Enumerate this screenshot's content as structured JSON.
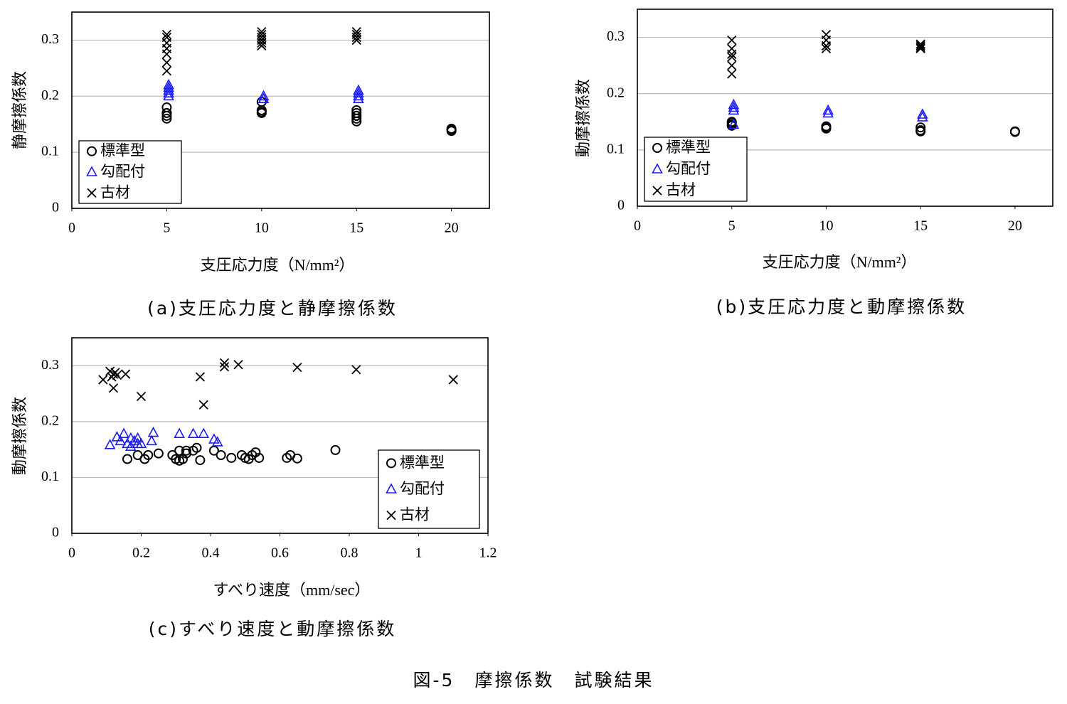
{
  "chart_data": [
    {
      "type": "scatter",
      "caption": "(a)支圧応力度と静摩擦係数",
      "xlabel": "支圧応力度（N/mm²）",
      "ylabel": "静摩擦係数",
      "xlim": [
        0,
        22
      ],
      "xticks": [
        0,
        5,
        10,
        15,
        20
      ],
      "ylim": [
        0,
        0.35
      ],
      "yticks": [
        0,
        0.1,
        0.2,
        0.3
      ],
      "grid": true,
      "legend": "lower left",
      "series": [
        {
          "name": "標準型",
          "color": "#000000",
          "marker": "circle",
          "x": [
            5,
            5,
            5,
            5,
            5,
            10,
            10,
            10,
            10,
            15,
            15,
            15,
            15,
            15,
            15,
            20,
            20,
            20
          ],
          "values": [
            0.18,
            0.17,
            0.16,
            0.17,
            0.165,
            0.19,
            0.175,
            0.17,
            0.172,
            0.175,
            0.17,
            0.165,
            0.16,
            0.155,
            0.165,
            0.14,
            0.142,
            0.138
          ]
        },
        {
          "name": "勾配付",
          "color": "#1a1aff",
          "marker": "triangle",
          "x": [
            5.1,
            5.1,
            5.1,
            5.1,
            5.1,
            10.1,
            10.1,
            15.1,
            15.1,
            15.1,
            15.1
          ],
          "values": [
            0.22,
            0.215,
            0.21,
            0.205,
            0.2,
            0.2,
            0.195,
            0.21,
            0.205,
            0.2,
            0.195
          ]
        },
        {
          "name": "古材",
          "color": "#000000",
          "marker": "cross",
          "x": [
            5,
            5,
            5,
            5,
            5,
            5,
            5,
            10,
            10,
            10,
            10,
            10,
            10,
            15,
            15,
            15,
            15
          ],
          "values": [
            0.31,
            0.305,
            0.295,
            0.285,
            0.275,
            0.26,
            0.245,
            0.315,
            0.31,
            0.305,
            0.3,
            0.295,
            0.29,
            0.315,
            0.31,
            0.305,
            0.3
          ]
        }
      ]
    },
    {
      "type": "scatter",
      "caption": "(b)支圧応力度と動摩擦係数",
      "xlabel": "支圧応力度（N/mm²）",
      "ylabel": "動摩擦係数",
      "xlim": [
        0,
        22
      ],
      "xticks": [
        0,
        5,
        10,
        15,
        20
      ],
      "ylim": [
        0,
        0.35
      ],
      "yticks": [
        0,
        0.1,
        0.2,
        0.3
      ],
      "grid": true,
      "legend": "lower left",
      "series": [
        {
          "name": "標準型",
          "color": "#000000",
          "marker": "circle",
          "x": [
            5,
            5,
            5,
            5,
            10,
            10,
            10,
            15,
            15,
            15,
            20,
            20
          ],
          "values": [
            0.15,
            0.148,
            0.145,
            0.143,
            0.142,
            0.14,
            0.138,
            0.14,
            0.135,
            0.133,
            0.133,
            0.132
          ]
        },
        {
          "name": "勾配付",
          "color": "#1a1aff",
          "marker": "triangle",
          "x": [
            5.1,
            5.1,
            5.1,
            5.1,
            10.1,
            10.1,
            15.1,
            15.1
          ],
          "values": [
            0.18,
            0.175,
            0.17,
            0.145,
            0.17,
            0.165,
            0.163,
            0.158
          ]
        },
        {
          "name": "古材",
          "color": "#000000",
          "marker": "cross",
          "x": [
            5,
            5,
            5,
            5,
            5,
            5,
            10,
            10,
            10,
            10,
            15,
            15,
            15,
            15
          ],
          "values": [
            0.295,
            0.28,
            0.27,
            0.265,
            0.25,
            0.235,
            0.305,
            0.295,
            0.285,
            0.28,
            0.288,
            0.285,
            0.282,
            0.28
          ]
        }
      ]
    },
    {
      "type": "scatter",
      "caption": "(c)すべり速度と動摩擦係数",
      "xlabel": "すべり速度（mm/sec）",
      "ylabel": "動摩擦係数",
      "xlim": [
        0,
        1.2
      ],
      "xticks": [
        0,
        0.2,
        0.4,
        0.6,
        0.8,
        1,
        1.2
      ],
      "ylim": [
        0,
        0.35
      ],
      "yticks": [
        0,
        0.1,
        0.2,
        0.3
      ],
      "grid": true,
      "legend": "lower right",
      "series": [
        {
          "name": "標準型",
          "color": "#000000",
          "marker": "circle",
          "x": [
            0.16,
            0.19,
            0.21,
            0.22,
            0.25,
            0.29,
            0.3,
            0.31,
            0.31,
            0.32,
            0.33,
            0.33,
            0.35,
            0.36,
            0.37,
            0.41,
            0.43,
            0.46,
            0.49,
            0.5,
            0.51,
            0.52,
            0.53,
            0.54,
            0.62,
            0.63,
            0.65,
            0.76
          ],
          "values": [
            0.133,
            0.14,
            0.133,
            0.14,
            0.143,
            0.14,
            0.133,
            0.13,
            0.148,
            0.133,
            0.143,
            0.148,
            0.148,
            0.153,
            0.131,
            0.148,
            0.14,
            0.135,
            0.14,
            0.135,
            0.133,
            0.14,
            0.145,
            0.135,
            0.135,
            0.14,
            0.134,
            0.149
          ]
        },
        {
          "name": "勾配付",
          "color": "#1a1aff",
          "marker": "triangle",
          "x": [
            0.11,
            0.13,
            0.14,
            0.15,
            0.16,
            0.17,
            0.17,
            0.18,
            0.19,
            0.19,
            0.2,
            0.23,
            0.235,
            0.31,
            0.35,
            0.38,
            0.41,
            0.42
          ],
          "values": [
            0.158,
            0.172,
            0.165,
            0.178,
            0.16,
            0.155,
            0.17,
            0.165,
            0.16,
            0.17,
            0.16,
            0.165,
            0.18,
            0.178,
            0.178,
            0.178,
            0.168,
            0.163
          ]
        },
        {
          "name": "古材",
          "color": "#000000",
          "marker": "cross",
          "x": [
            0.09,
            0.11,
            0.115,
            0.12,
            0.12,
            0.125,
            0.13,
            0.155,
            0.2,
            0.37,
            0.38,
            0.44,
            0.44,
            0.48,
            0.65,
            0.82,
            1.1
          ],
          "values": [
            0.275,
            0.29,
            0.28,
            0.26,
            0.285,
            0.288,
            0.283,
            0.285,
            0.245,
            0.28,
            0.23,
            0.305,
            0.298,
            0.302,
            0.297,
            0.293,
            0.275
          ]
        }
      ]
    }
  ],
  "figure_title": "図-5　摩擦係数　試験結果"
}
